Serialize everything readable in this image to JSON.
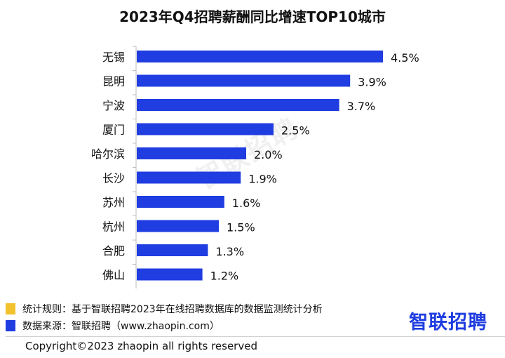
{
  "chart_data": {
    "type": "bar",
    "orientation": "horizontal",
    "title": "2023年Q4招聘薪酬同比增速TOP10城市",
    "categories": [
      "无锡",
      "昆明",
      "宁波",
      "厦门",
      "哈尔滨",
      "长沙",
      "苏州",
      "杭州",
      "合肥",
      "佛山"
    ],
    "values": [
      4.5,
      3.9,
      3.7,
      2.5,
      2.0,
      1.9,
      1.6,
      1.5,
      1.3,
      1.2
    ],
    "value_labels": [
      "4.5%",
      "3.9%",
      "3.7%",
      "2.5%",
      "2.0%",
      "1.9%",
      "1.6%",
      "1.5%",
      "1.3%",
      "1.2%"
    ],
    "xlim": [
      0,
      4.5
    ],
    "grid": false,
    "bar_color": "#1f3de0"
  },
  "watermark": "智联招聘",
  "notes": [
    {
      "label": "统计规则：",
      "text": "基于智联招聘2023年在线招聘数据库的数据监测统计分析",
      "color": "#f2c12e"
    },
    {
      "label": "数据来源：",
      "text": "智联招聘（www.zhaopin.com）",
      "color": "#1f3de0"
    }
  ],
  "logo": {
    "text": "智联招聘",
    "color": "#1f3de0"
  },
  "copyright": "Copyright©2023 zhaopin all rights reserved"
}
